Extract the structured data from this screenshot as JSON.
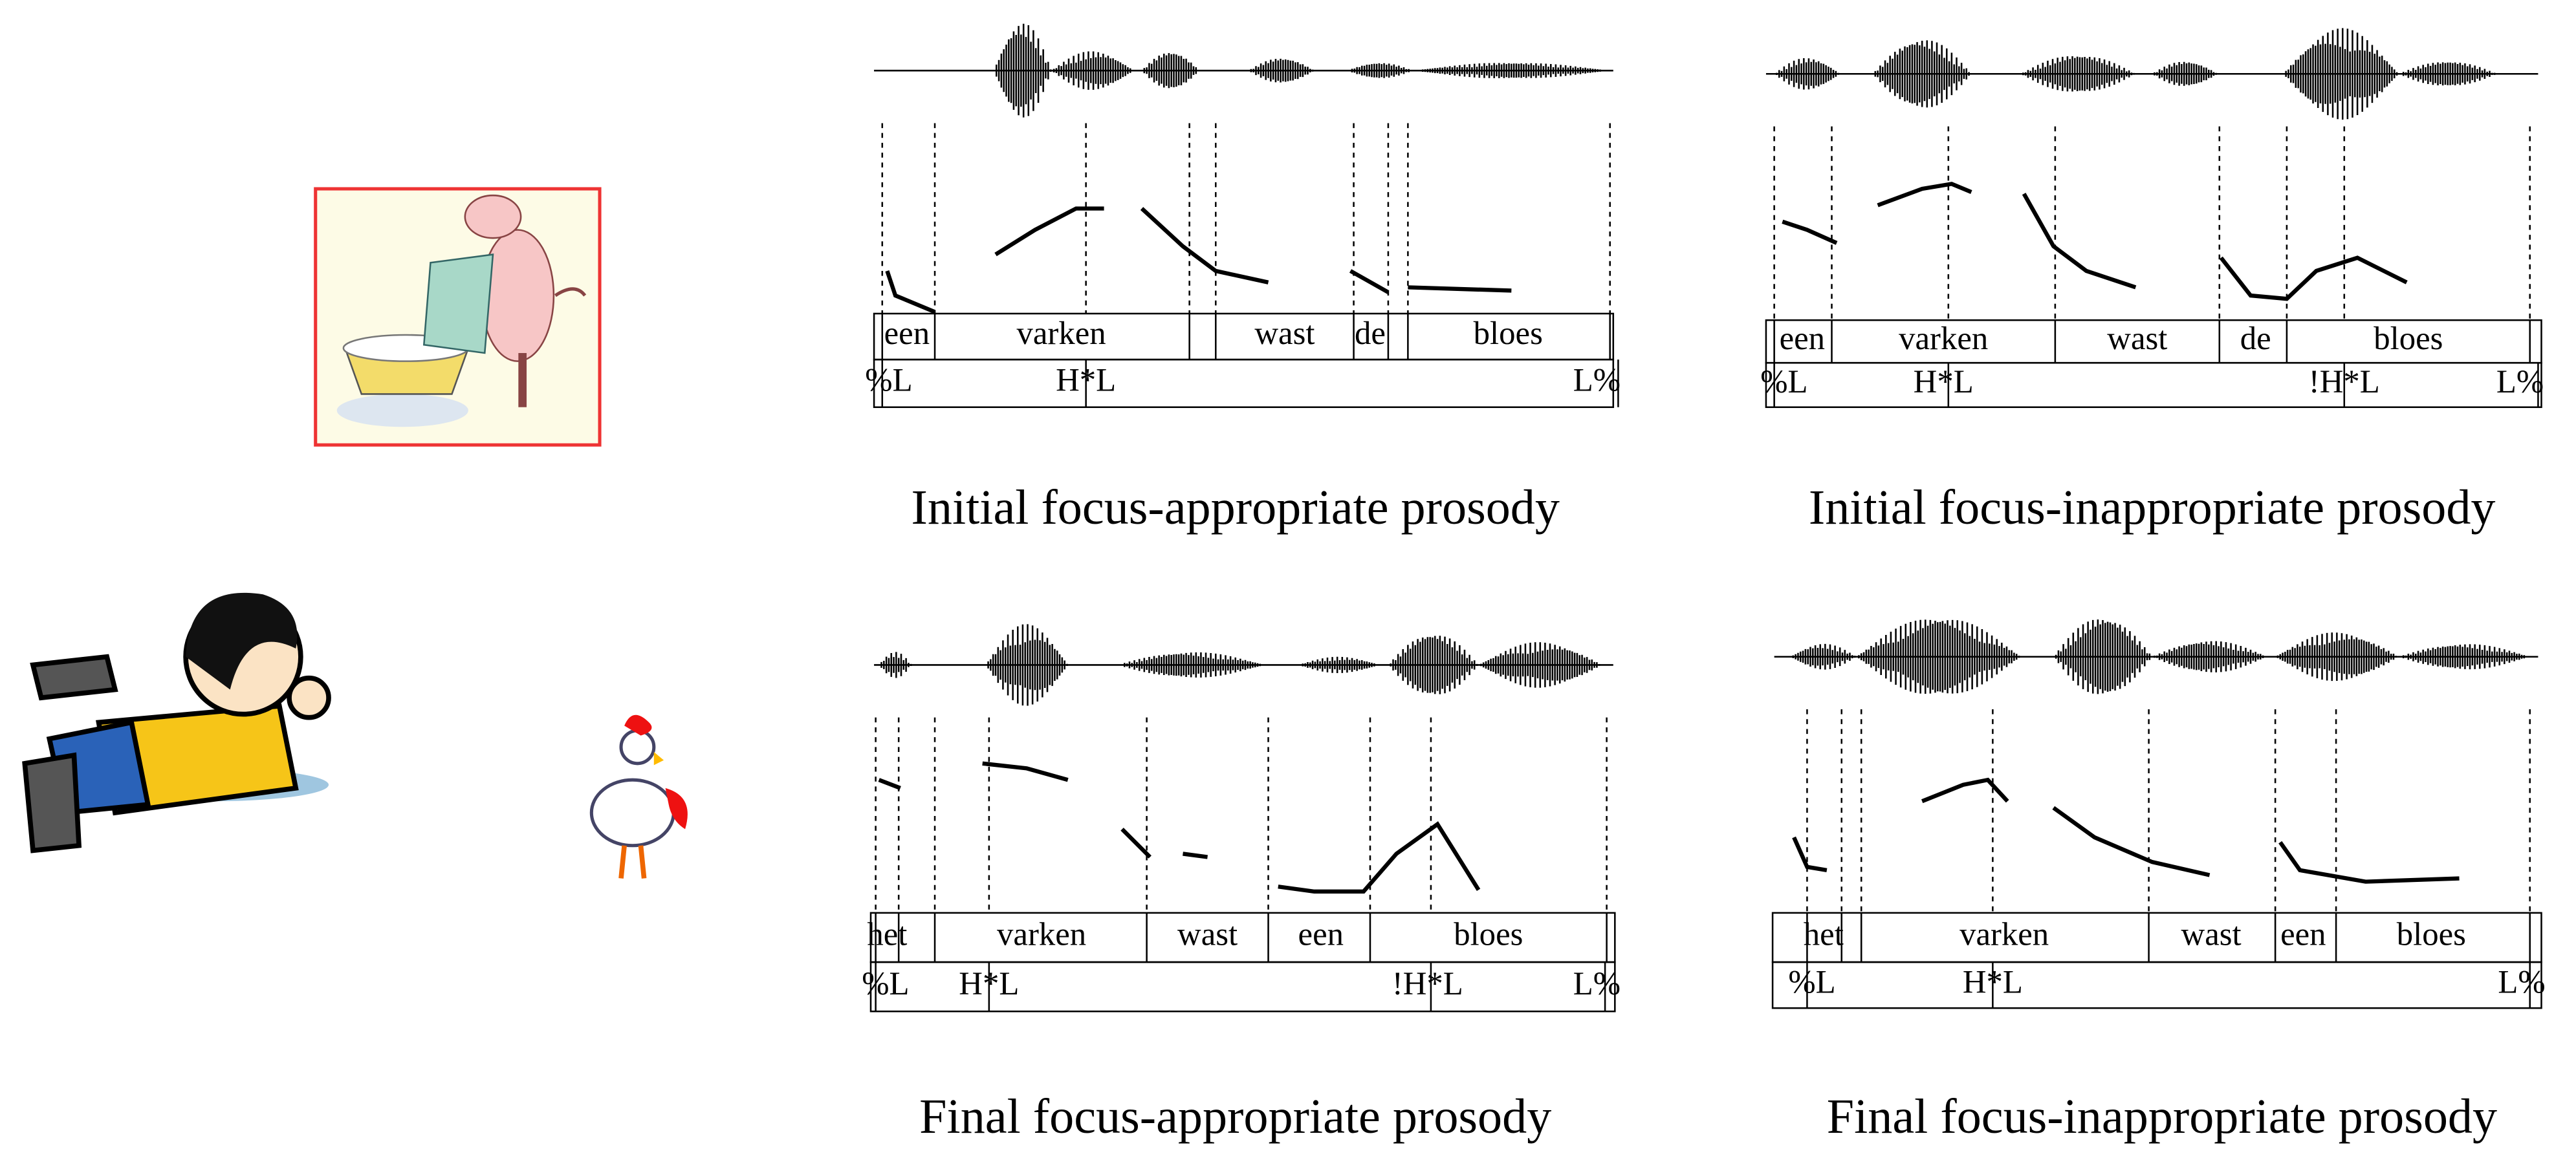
{
  "panels": [
    {
      "caption": "Initial focus-appropriate prosody",
      "words": [
        "een",
        "varken",
        "wast",
        "de",
        "bloes"
      ],
      "tones": [
        "%L",
        "H*L",
        "L%"
      ]
    },
    {
      "caption": "Initial focus-inappropriate prosody",
      "words": [
        "een",
        "varken",
        "wast",
        "de",
        "bloes"
      ],
      "tones": [
        "%L",
        "H*L",
        "!H*L",
        "L%"
      ]
    },
    {
      "caption": "Final focus-appropriate prosody",
      "words": [
        "het",
        "varken",
        "wast",
        "een",
        "bloes"
      ],
      "tones": [
        "%L",
        "H*L",
        "!H*L",
        "L%"
      ]
    },
    {
      "caption": "Final focus-inappropriate prosody",
      "words": [
        "het",
        "varken",
        "wast",
        "een",
        "bloes"
      ],
      "tones": [
        "%L",
        "H*L",
        "L%"
      ]
    }
  ]
}
